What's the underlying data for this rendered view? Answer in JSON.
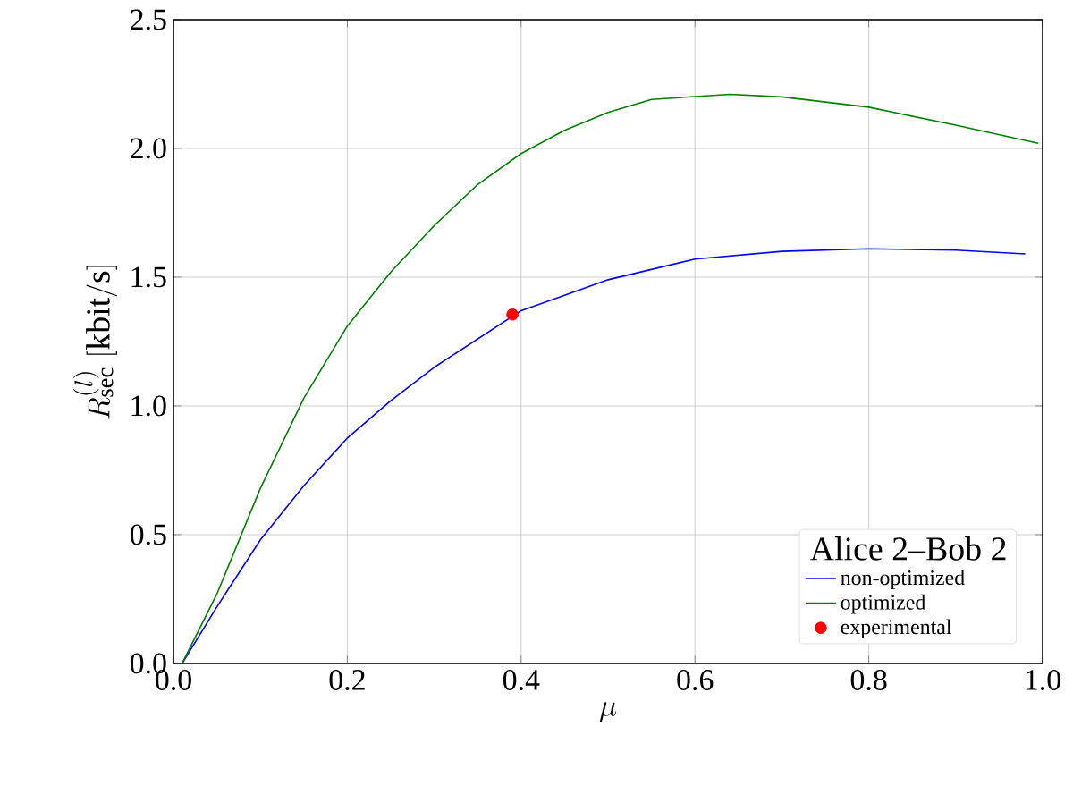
{
  "chart_data": {
    "type": "line",
    "xlabel": "\\mu",
    "ylabel": "R_{\\mathrm{sec}}^{(l)}\\ [\\mathrm{kbit/s}]",
    "legend_title": "Alice 2–Bob 2",
    "xlim": [
      0,
      1
    ],
    "ylim": [
      0,
      2.5
    ],
    "xticks": [
      {
        "value": 0,
        "label": "0.0"
      },
      0.2,
      0.4,
      0.6,
      0.8,
      {
        "value": 1,
        "label": "1.0"
      }
    ],
    "yticks": [
      {
        "value": 0,
        "label": "0.0"
      },
      0.5,
      {
        "value": 1,
        "label": "1.0"
      },
      1.5,
      {
        "value": 2,
        "label": "2.0"
      },
      2.5
    ],
    "grid": true,
    "legend": "bottom right",
    "series": [
      {
        "name": "non-optimized",
        "color": "#0000ff",
        "x": [
          0.01,
          0.05,
          0.1,
          0.15,
          0.2,
          0.25,
          0.3,
          0.35,
          0.4,
          0.45,
          0.5,
          0.6,
          0.7,
          0.8,
          0.9,
          0.98
        ],
        "values": [
          0,
          0.22,
          0.48,
          0.69,
          0.875,
          1.02,
          1.15,
          1.26,
          1.37,
          1.43,
          1.49,
          1.57,
          1.6,
          1.61,
          1.605,
          1.59
        ]
      },
      {
        "name": "optimized",
        "color": "#008000",
        "x": [
          0.01,
          0.05,
          0.1,
          0.15,
          0.2,
          0.25,
          0.3,
          0.35,
          0.4,
          0.45,
          0.5,
          0.55,
          0.64,
          0.7,
          0.8,
          0.9,
          0.995
        ],
        "values": [
          0,
          0.27,
          0.68,
          1.03,
          1.31,
          1.52,
          1.7,
          1.86,
          1.98,
          2.07,
          2.14,
          2.19,
          2.21,
          2.2,
          2.16,
          2.09,
          2.02
        ]
      },
      {
        "name": "experimental",
        "type": "scatter",
        "marker": "circle",
        "color": "#ff0000",
        "x": [
          0.39
        ],
        "values": [
          1.355
        ]
      }
    ]
  }
}
